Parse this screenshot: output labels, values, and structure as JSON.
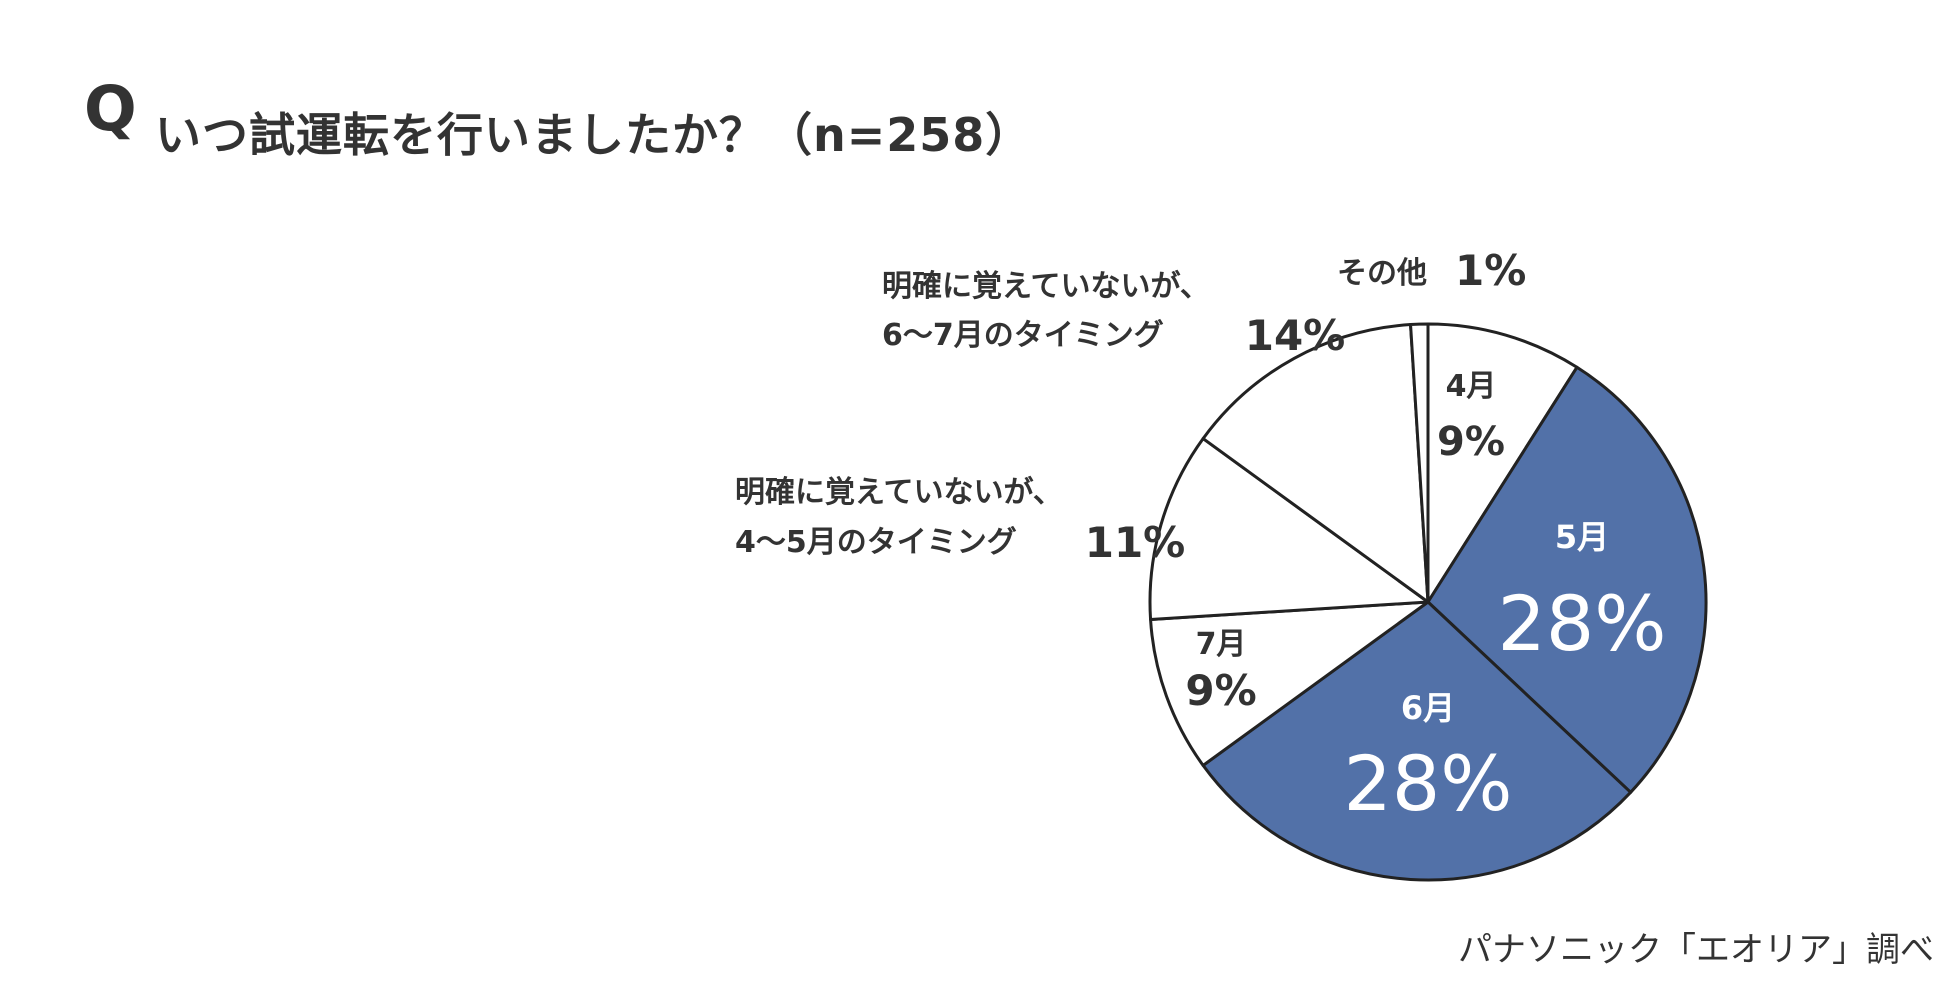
{
  "header": {
    "q_mark": "Q",
    "question": "いつ試運転を行いましたか？（n=258）"
  },
  "source": "パナソニック「エオリア」調べ",
  "colors": {
    "highlight": "#5271a8",
    "outline": "#222222",
    "slice_fill": "#ffffff",
    "text": "#333333"
  },
  "chart_data": {
    "type": "pie",
    "title": "",
    "start": "12 o'clock",
    "direction": "clockwise",
    "slices": [
      {
        "label": "4月",
        "value": 9,
        "display": "9%",
        "highlight": false
      },
      {
        "label": "5月",
        "value": 28,
        "display": "28%",
        "highlight": true
      },
      {
        "label": "6月",
        "value": 28,
        "display": "28%",
        "highlight": true
      },
      {
        "label": "7月",
        "value": 9,
        "display": "9%",
        "highlight": false
      },
      {
        "label": "明確に覚えていないが、|4〜5月のタイミング",
        "value": 11,
        "display": "11%",
        "highlight": false
      },
      {
        "label": "明確に覚えていないが、|6〜7月のタイミング",
        "value": 14,
        "display": "14%",
        "highlight": false
      },
      {
        "label": "その他",
        "value": 1,
        "display": "1%",
        "highlight": false
      }
    ]
  }
}
